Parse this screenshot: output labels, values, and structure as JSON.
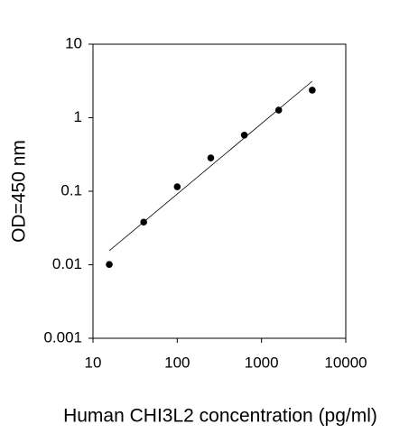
{
  "chart_data": {
    "type": "scatter",
    "x_label": "Human CHI3L2 concentration (pg/ml)",
    "y_label": "OD=450 nm",
    "x": [
      15.6,
      40,
      100,
      250,
      625,
      1600,
      4000
    ],
    "values": [
      0.0101,
      0.038,
      0.115,
      0.284,
      0.58,
      1.27,
      2.37
    ],
    "color": "#000000",
    "fit": {
      "x": [
        15.6,
        4000
      ],
      "values": [
        0.0155,
        3.14
      ],
      "color": "#000000"
    },
    "xscale": "log",
    "yscale": "log",
    "xlim": [
      10,
      10000
    ],
    "ylim": [
      0.001,
      10
    ],
    "xticks": [
      10,
      100,
      1000,
      10000
    ],
    "yticks": [
      0.001,
      0.01,
      0.1,
      1,
      10
    ]
  }
}
